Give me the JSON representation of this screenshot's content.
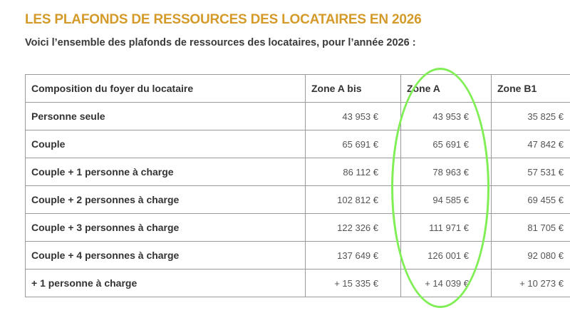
{
  "heading": "LES PLAFONDS DE RESSOURCES DES LOCATAIRES EN 2026",
  "intro": "Voici l’ensemble des plafonds de ressources des locataires, pour l’année 2026 :",
  "table": {
    "headers": [
      "Composition du foyer du locataire",
      "Zone A bis",
      "Zone A",
      "Zone B1"
    ],
    "rows": [
      {
        "label": "Personne seule",
        "a_bis": "43 953 €",
        "a": "43 953 €",
        "b1": "35 825 €"
      },
      {
        "label": "Couple",
        "a_bis": "65 691 €",
        "a": "65 691 €",
        "b1": "47 842 €"
      },
      {
        "label": "Couple + 1 personne à charge",
        "a_bis": "86 112 €",
        "a": "78 963 €",
        "b1": "57 531 €"
      },
      {
        "label": "Couple + 2 personnes à charge",
        "a_bis": "102 812 €",
        "a": "94 585 €",
        "b1": "69 455 €"
      },
      {
        "label": "Couple + 3 personnes à charge",
        "a_bis": "122 326 €",
        "a": "111 971 €",
        "b1": "81 705 €"
      },
      {
        "label": "Couple + 4 personnes à charge",
        "a_bis": "137 649 €",
        "a": "126 001 €",
        "b1": "92 080 €"
      },
      {
        "label": "+ 1 personne à charge",
        "a_bis": "+ 15 335 €",
        "a": "+ 14 039 €",
        "b1": "+ 10 273 €"
      }
    ]
  },
  "colors": {
    "heading": "#d49a2a",
    "highlight": "#80ee55"
  }
}
